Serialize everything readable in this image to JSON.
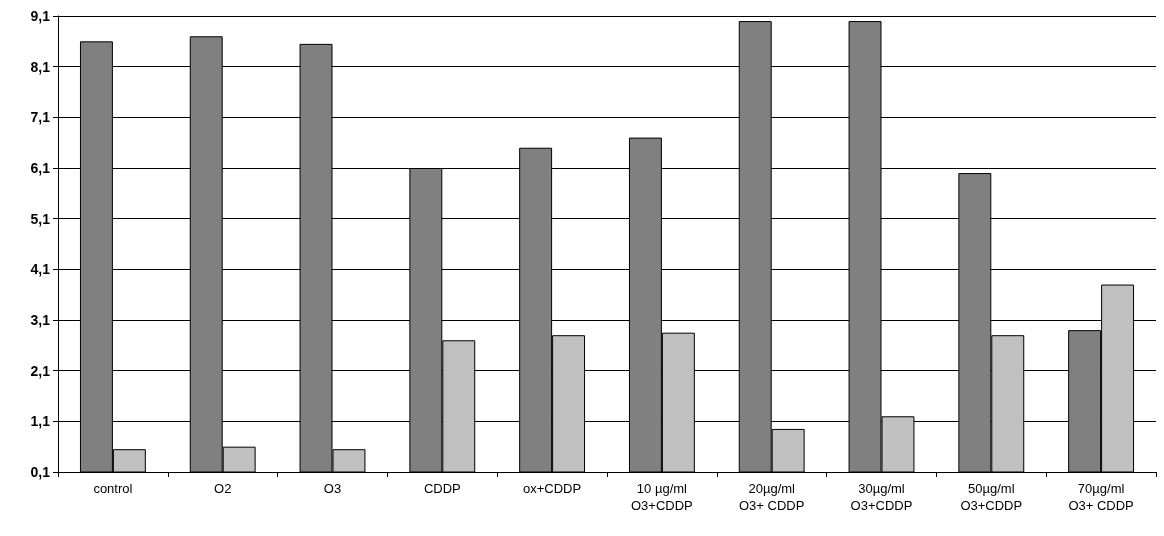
{
  "chart_data": {
    "type": "bar",
    "categories": [
      "control",
      "O2",
      "O3",
      "CDDP",
      "ox+CDDP",
      "10 µg/ml\nO3+CDDP",
      "20µg/ml\nO3+ CDDP",
      "30µg/ml\nO3+CDDP",
      "50µg/ml\nO3+CDDP",
      "70µg/ml\nO3+ CDDP"
    ],
    "series": [
      {
        "color": "#808080",
        "values": [
          8.6,
          8.7,
          8.55,
          6.1,
          6.5,
          6.7,
          9.0,
          9.0,
          6.0,
          2.9
        ]
      },
      {
        "color": "#c0c0c0",
        "values": [
          0.55,
          0.6,
          0.55,
          2.7,
          2.8,
          2.85,
          0.95,
          1.2,
          2.8,
          3.8
        ]
      }
    ],
    "ylim": [
      0.1,
      9.1
    ],
    "yticks": [
      {
        "value": 0.1,
        "label": "0,1"
      },
      {
        "value": 1.1,
        "label": "1,1"
      },
      {
        "value": 2.1,
        "label": "2,1"
      },
      {
        "value": 3.1,
        "label": "3,1"
      },
      {
        "value": 4.1,
        "label": "4,1"
      },
      {
        "value": 5.1,
        "label": "5,1"
      },
      {
        "value": 6.1,
        "label": "6,1"
      },
      {
        "value": 7.1,
        "label": "7,1"
      },
      {
        "value": 8.1,
        "label": "8,1"
      },
      {
        "value": 9.1,
        "label": "9,1"
      }
    ],
    "grid": "y"
  }
}
